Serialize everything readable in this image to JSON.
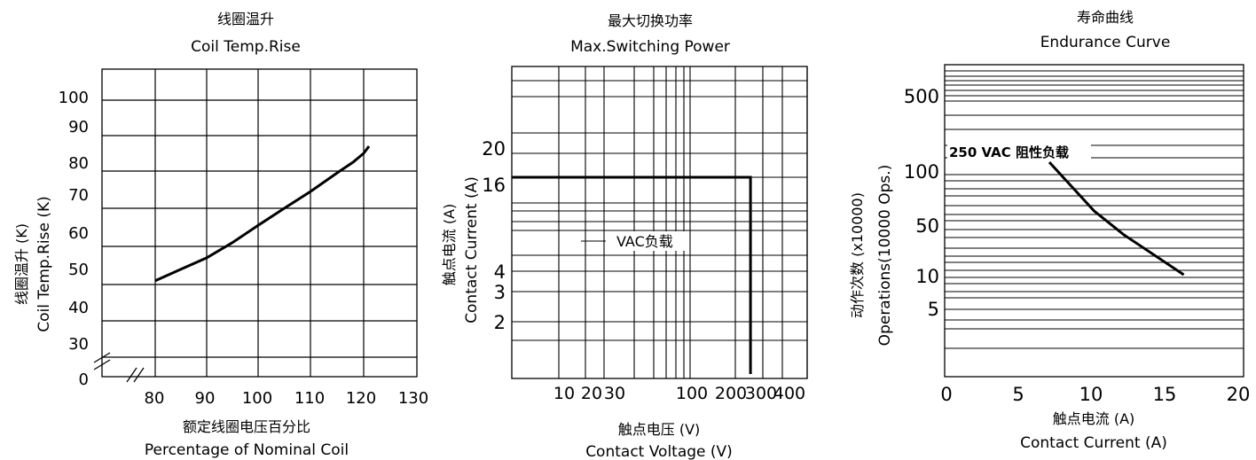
{
  "chart_data": [
    {
      "type": "line",
      "title": "线圈温升",
      "subtitle": "Coil Temp.Rise",
      "ylabel_cn": "线圈温升 (K)",
      "ylabel_en": "Coil Temp.Rise (K)",
      "xlabel_cn": "额定线圈电压百分比",
      "xlabel_en": "Percentage of Nominal Coil",
      "x_ticks": [
        "80",
        "90",
        "100",
        "110",
        "120",
        "130"
      ],
      "y_ticks": [
        "0",
        "30",
        "40",
        "50",
        "60",
        "70",
        "80",
        "90",
        "100"
      ],
      "xlim": [
        75,
        130
      ],
      "ylim": [
        20,
        100
      ],
      "axis_breaks": true,
      "grid": true,
      "series": [
        {
          "x": [
            80,
            85,
            90,
            95,
            100,
            105,
            110,
            115,
            118,
            120,
            121
          ],
          "y": [
            51,
            54,
            57,
            61,
            65.5,
            70,
            74.5,
            79.5,
            82.5,
            85,
            87
          ]
        }
      ]
    },
    {
      "type": "line",
      "title": "最大切换功率",
      "subtitle": "Max.Switching  Power",
      "ylabel_cn": "触点电流 (A)",
      "ylabel_en": "Contact Current (A)",
      "xlabel_cn": "触点电压 (V)",
      "xlabel_en": "Contact Voltage (V)",
      "x_scale": "log",
      "y_scale": "log",
      "x_ticks": [
        "10",
        "20",
        "30",
        "100",
        "200",
        "300",
        "400"
      ],
      "y_ticks": [
        "2",
        "3",
        "4",
        "16",
        "20"
      ],
      "grid": true,
      "annotation": "VAC负载",
      "series": [
        {
          "x": [
            3,
            250,
            250
          ],
          "y": [
            16,
            16,
            0.9
          ]
        }
      ]
    },
    {
      "type": "line",
      "title": "寿命曲线",
      "subtitle": "Endurance Curve",
      "ylabel_cn": "动作次数 (x10000)",
      "ylabel_en": "Operations(10000 Ops.)",
      "xlabel_cn": "触点电流 (A)",
      "xlabel_en": "Contact Current (A)",
      "x_ticks": [
        "0",
        "5",
        "10",
        "15",
        "20"
      ],
      "y_ticks": [
        "5",
        "10",
        "50",
        "100",
        "500"
      ],
      "xlim": [
        0,
        20
      ],
      "grid": true,
      "annotation": "250 VAC 阻性负载",
      "series": [
        {
          "x": [
            7,
            10,
            12,
            16
          ],
          "y": [
            115,
            60,
            35,
            10
          ]
        }
      ]
    }
  ]
}
